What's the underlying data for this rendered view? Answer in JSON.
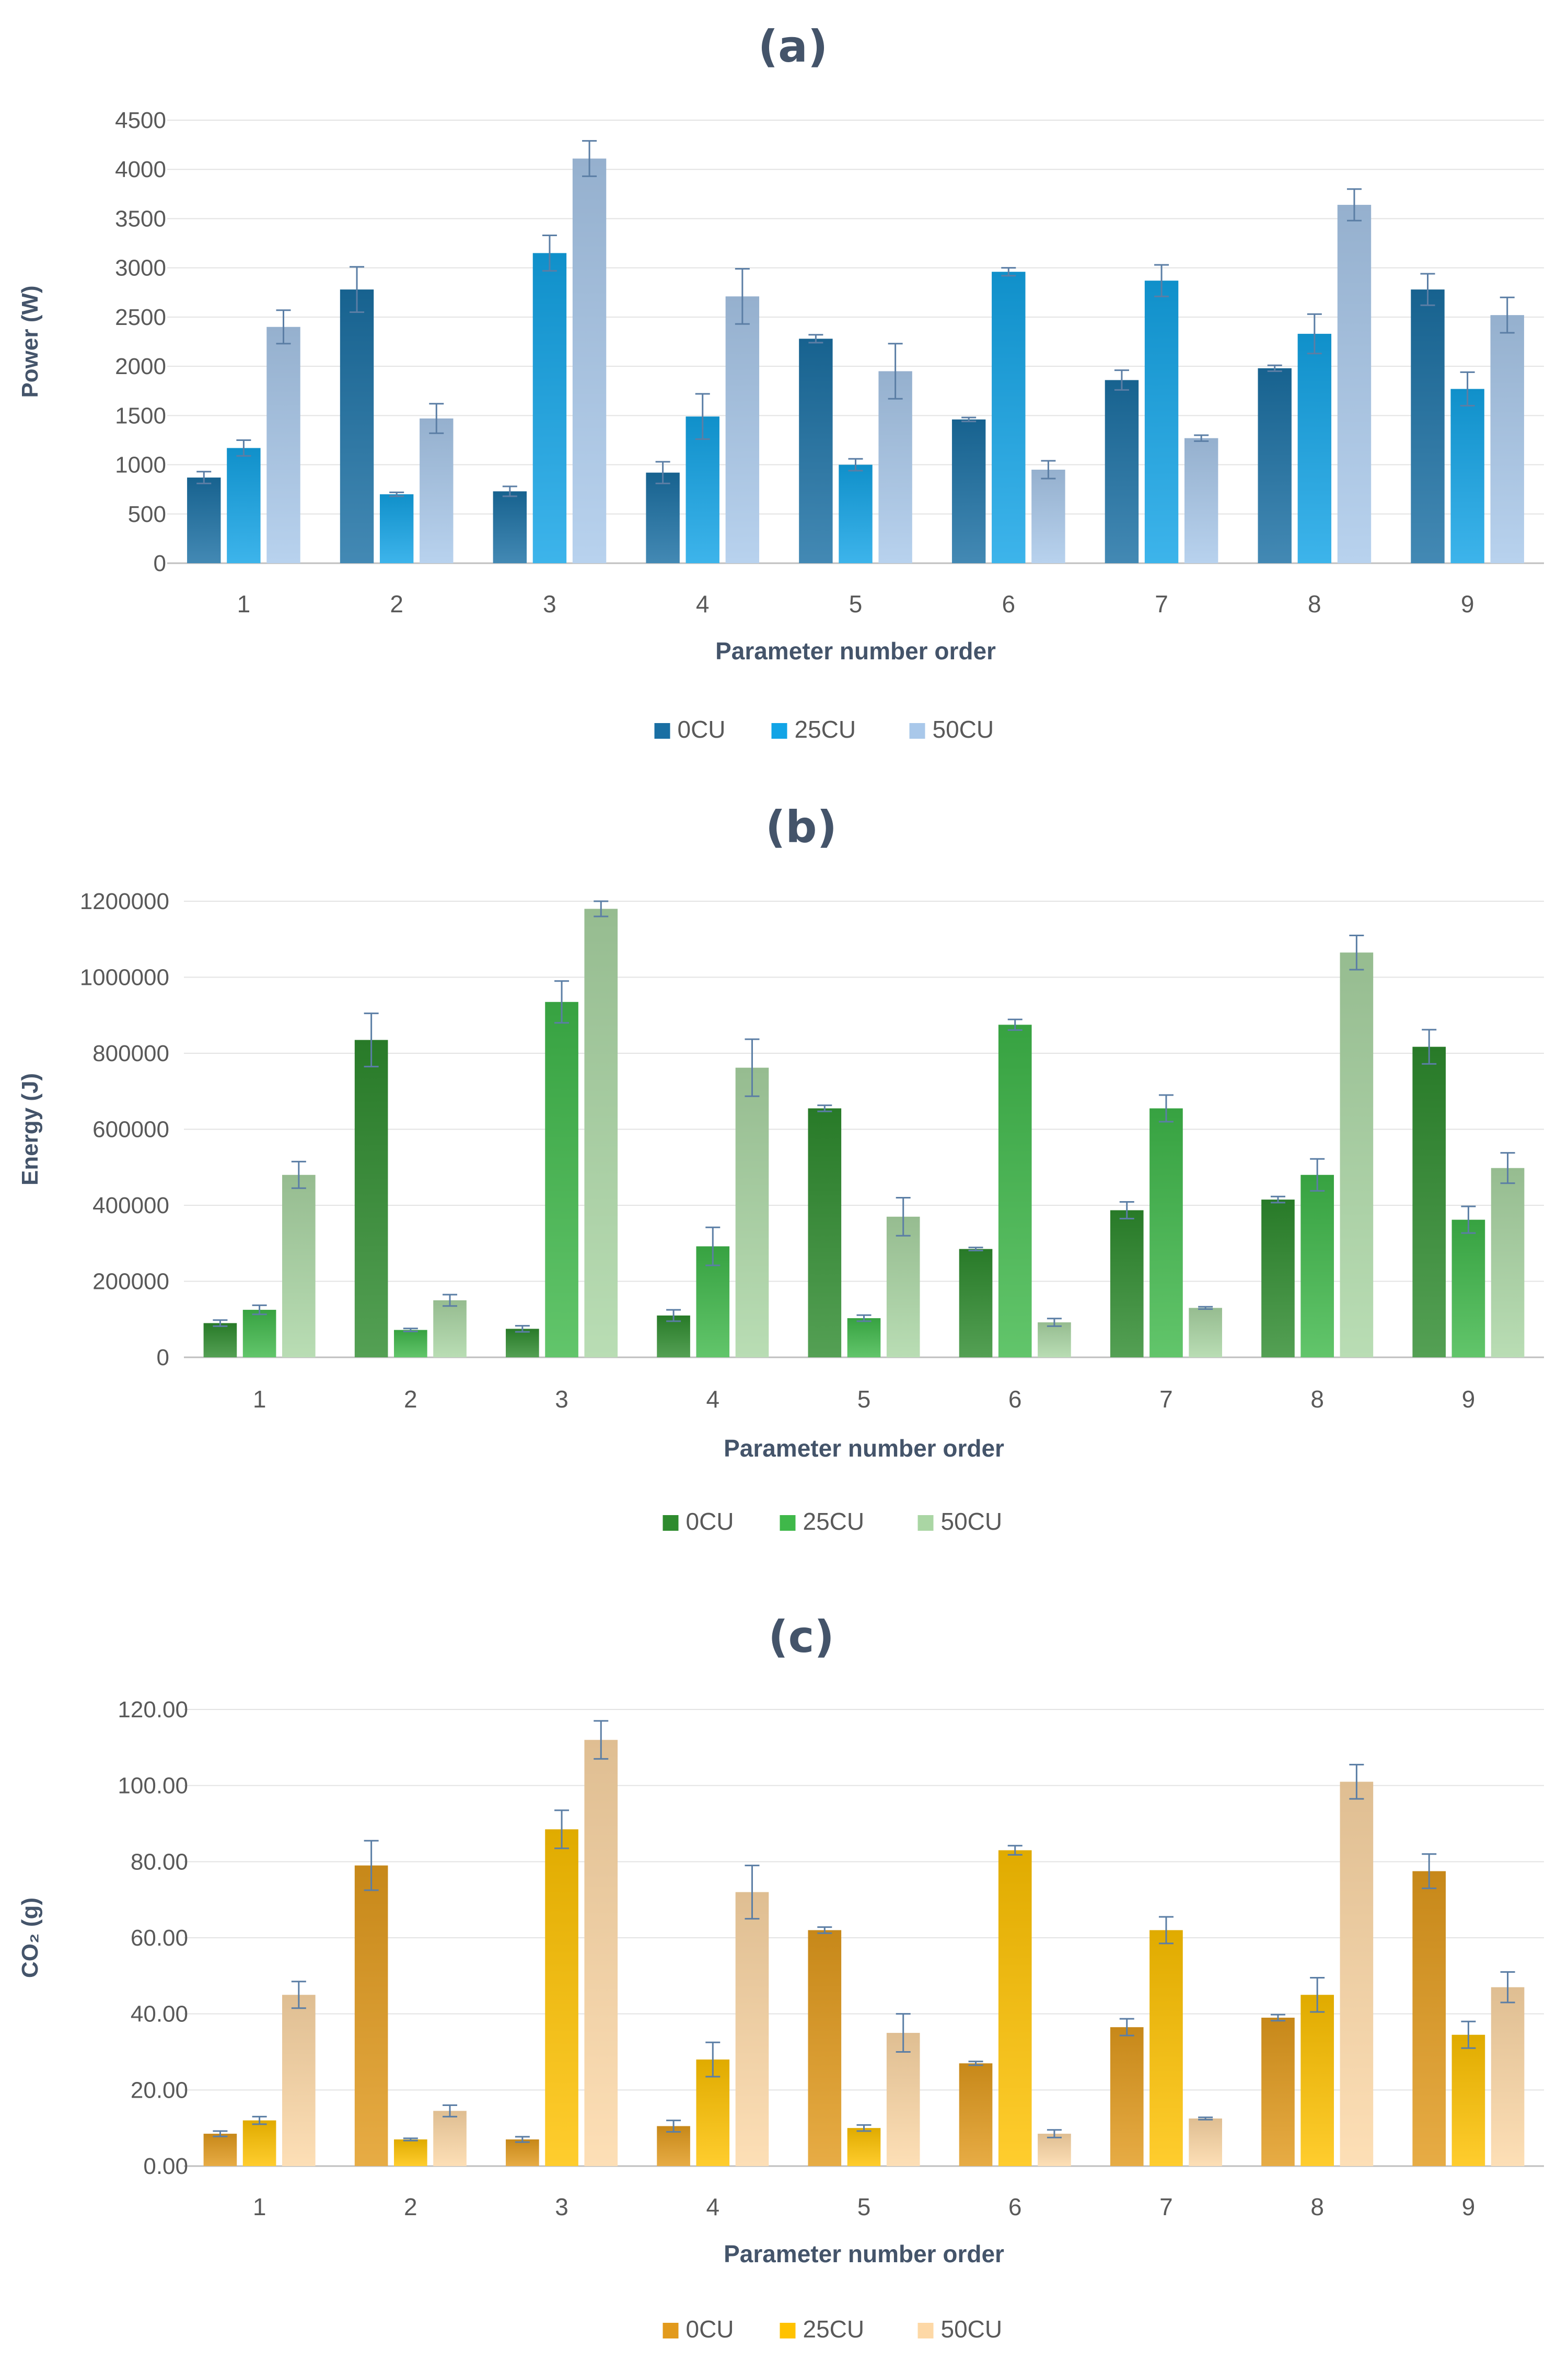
{
  "chart_data": [
    {
      "type": "bar",
      "title": "(a)",
      "xlabel": "Parameter number order",
      "ylabel": "Power (W)",
      "ylim": [
        0,
        4500
      ],
      "yticks": [
        "0",
        "500",
        "1000",
        "1500",
        "2000",
        "2500",
        "3000",
        "3500",
        "4000",
        "4500"
      ],
      "categories": [
        "1",
        "2",
        "3",
        "4",
        "5",
        "6",
        "7",
        "8",
        "9"
      ],
      "legend_position": "bottom",
      "grid": true,
      "colors": [
        "#1a6fa3",
        "#12a4e6",
        "#a9c8ea"
      ],
      "series": [
        {
          "name": "0CU",
          "values": [
            870,
            2780,
            730,
            920,
            2280,
            1460,
            1860,
            1980,
            2780
          ],
          "errors": [
            60,
            230,
            50,
            110,
            40,
            20,
            100,
            30,
            160
          ]
        },
        {
          "name": "25CU",
          "values": [
            1170,
            700,
            3150,
            1490,
            1000,
            2960,
            2870,
            2330,
            1770
          ],
          "errors": [
            80,
            20,
            180,
            230,
            60,
            40,
            160,
            200,
            170
          ]
        },
        {
          "name": "50CU",
          "values": [
            2400,
            1470,
            4110,
            2710,
            1950,
            950,
            1270,
            3640,
            2520
          ],
          "errors": [
            170,
            150,
            180,
            280,
            280,
            90,
            30,
            160,
            180
          ]
        }
      ]
    },
    {
      "type": "bar",
      "title": "(b)",
      "xlabel": "Parameter number order",
      "ylabel": "Energy (J)",
      "ylim": [
        0,
        1200000
      ],
      "yticks": [
        "0",
        "200000",
        "400000",
        "600000",
        "800000",
        "1000000",
        "1200000"
      ],
      "categories": [
        "1",
        "2",
        "3",
        "4",
        "5",
        "6",
        "7",
        "8",
        "9"
      ],
      "legend_position": "bottom",
      "grid": true,
      "colors": [
        "#2e8b2e",
        "#3fb84a",
        "#aad6a4"
      ],
      "series": [
        {
          "name": "0CU",
          "values": [
            90000,
            835000,
            75000,
            110000,
            655000,
            285000,
            387000,
            415000,
            817000
          ],
          "errors": [
            8000,
            70000,
            8000,
            15000,
            8000,
            4000,
            22000,
            8000,
            45000
          ]
        },
        {
          "name": "25CU",
          "values": [
            125000,
            72000,
            935000,
            292000,
            103000,
            875000,
            655000,
            480000,
            362000
          ],
          "errors": [
            12000,
            4000,
            55000,
            50000,
            8000,
            14000,
            35000,
            42000,
            35000
          ]
        },
        {
          "name": "50CU",
          "values": [
            480000,
            150000,
            1180000,
            762000,
            370000,
            92000,
            130000,
            1065000,
            498000
          ],
          "errors": [
            35000,
            15000,
            20000,
            75000,
            50000,
            10000,
            3000,
            45000,
            40000
          ]
        }
      ]
    },
    {
      "type": "bar",
      "title": "(c)",
      "xlabel": "Parameter number order",
      "ylabel": "CO₂ (g)",
      "ylim": [
        0,
        120
      ],
      "yticks": [
        "0.00",
        "20.00",
        "40.00",
        "60.00",
        "80.00",
        "100.00",
        "120.00"
      ],
      "categories": [
        "1",
        "2",
        "3",
        "4",
        "5",
        "6",
        "7",
        "8",
        "9"
      ],
      "legend_position": "bottom",
      "grid": true,
      "colors": [
        "#e29a1c",
        "#ffc200",
        "#fdd8a6"
      ],
      "series": [
        {
          "name": "0CU",
          "values": [
            8.5,
            79,
            7,
            10.5,
            62,
            27,
            36.5,
            39,
            77.5
          ],
          "errors": [
            0.7,
            6.5,
            0.7,
            1.5,
            0.8,
            0.5,
            2.2,
            0.8,
            4.5
          ]
        },
        {
          "name": "25CU",
          "values": [
            12,
            7,
            88.5,
            28,
            10,
            83,
            62,
            45,
            34.5
          ],
          "errors": [
            1.0,
            0.3,
            5.0,
            4.5,
            0.8,
            1.2,
            3.5,
            4.5,
            3.5
          ]
        },
        {
          "name": "50CU",
          "values": [
            45,
            14.5,
            112,
            72,
            35,
            8.5,
            12.5,
            101,
            47
          ],
          "errors": [
            3.5,
            1.5,
            5.0,
            7.0,
            5.0,
            1.0,
            0.3,
            4.5,
            4.0
          ]
        }
      ]
    }
  ]
}
